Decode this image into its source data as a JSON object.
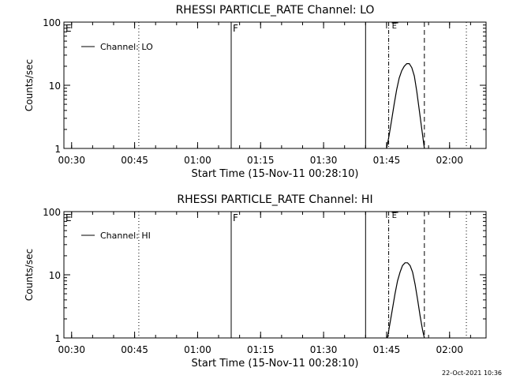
{
  "timestamp": "22-Oct-2021 10:36",
  "chart_data": [
    {
      "type": "line",
      "title": "RHESSI PARTICLE_RATE Channel: LO",
      "xlabel": "Start Time (15-Nov-11 00:28:10)",
      "ylabel": "Counts/sec",
      "yscale": "log",
      "ylim": [
        1,
        100
      ],
      "y_ticks": [
        "1",
        "10",
        "100"
      ],
      "x_ticks": [
        "00:30",
        "00:45",
        "01:00",
        "01:15",
        "01:30",
        "01:45",
        "02:00"
      ],
      "legend": "Channel: LO",
      "legend_position": "top-left",
      "markers": [
        {
          "label": "E",
          "time": "00:28",
          "style": "none"
        },
        {
          "label": "",
          "time": "00:46",
          "style": "dotted"
        },
        {
          "label": "F",
          "time": "01:08",
          "style": "solid"
        },
        {
          "label": "",
          "time": "01:40",
          "style": "solid"
        },
        {
          "label": "",
          "time": "01:45.5",
          "style": "dashdot"
        },
        {
          "label": "",
          "time": "01:54",
          "style": "dashed"
        },
        {
          "label": "",
          "time": "02:04",
          "style": "dotted"
        }
      ],
      "e_marker_label": "E",
      "series": [
        {
          "name": "Channel: LO",
          "x": [
            "01:45.0",
            "01:45.6",
            "01:46.2",
            "01:46.8",
            "01:47.4",
            "01:48.0",
            "01:48.6",
            "01:49.2",
            "01:49.8",
            "01:50.4",
            "01:51.0",
            "01:51.6",
            "01:52.2",
            "01:52.8",
            "01:53.4",
            "01:54.0"
          ],
          "y": [
            1,
            1.6,
            2.8,
            5.0,
            8.5,
            13,
            17,
            20,
            22,
            22,
            19,
            14,
            8,
            4,
            2,
            1
          ]
        }
      ]
    },
    {
      "type": "line",
      "title": "RHESSI PARTICLE_RATE Channel: HI",
      "xlabel": "Start Time (15-Nov-11 00:28:10)",
      "ylabel": "Counts/sec",
      "yscale": "log",
      "ylim": [
        1,
        100
      ],
      "y_ticks": [
        "1",
        "10",
        "100"
      ],
      "x_ticks": [
        "00:30",
        "00:45",
        "01:00",
        "01:15",
        "01:30",
        "01:45",
        "02:00"
      ],
      "legend": "Channel: HI",
      "legend_position": "top-left",
      "markers": [
        {
          "label": "E",
          "time": "00:28",
          "style": "none"
        },
        {
          "label": "",
          "time": "00:46",
          "style": "dotted"
        },
        {
          "label": "F",
          "time": "01:08",
          "style": "solid"
        },
        {
          "label": "",
          "time": "01:40",
          "style": "solid"
        },
        {
          "label": "",
          "time": "01:45.5",
          "style": "dashdot"
        },
        {
          "label": "",
          "time": "01:54",
          "style": "dashed"
        },
        {
          "label": "",
          "time": "02:04",
          "style": "dotted"
        }
      ],
      "e_marker_label": "E",
      "series": [
        {
          "name": "Channel: HI",
          "x": [
            "01:45.2",
            "01:45.8",
            "01:46.4",
            "01:47.0",
            "01:47.6",
            "01:48.2",
            "01:48.8",
            "01:49.4",
            "01:50.0",
            "01:50.6",
            "01:51.2",
            "01:51.8",
            "01:52.4",
            "01:53.0",
            "01:53.6",
            "01:54.0"
          ],
          "y": [
            1,
            1.7,
            2.9,
            5.0,
            8.0,
            11,
            14,
            15.5,
            15.5,
            14,
            11,
            7,
            4,
            2.2,
            1.3,
            1
          ]
        }
      ]
    }
  ]
}
